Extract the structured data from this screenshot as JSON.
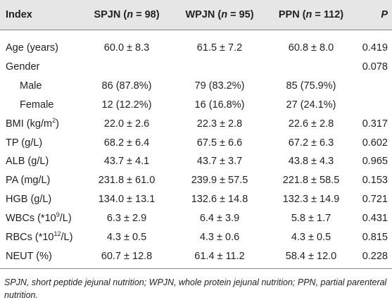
{
  "table": {
    "header": [
      "Index",
      [
        "SPJN (",
        "n",
        " = 98)"
      ],
      [
        "WPJN (",
        "n",
        " = 95)"
      ],
      [
        "PPN (",
        "n",
        " = 112)"
      ],
      [
        "",
        "P",
        ""
      ]
    ],
    "rows": [
      {
        "index": "Age (years)",
        "spjn": "60.0 ± 8.3",
        "wpjn": "61.5 ± 7.2",
        "ppn": "60.8 ± 8.0",
        "p": "0.419"
      },
      {
        "index": "Gender",
        "p": "0.078"
      },
      {
        "index": "Male",
        "spjn": "86 (87.8%)",
        "wpjn": "79 (83.2%)",
        "ppn": "85 (75.9%)"
      },
      {
        "index": "Female",
        "spjn": "12 (12.2%)",
        "wpjn": "16 (16.8%)",
        "ppn": "27 (24.1%)"
      },
      {
        "index": [
          "BMI (kg/m",
          "2",
          ")"
        ],
        "spjn": "22.0 ± 2.6",
        "wpjn": "22.3 ± 2.8",
        "ppn": "22.6 ± 2.8",
        "p": "0.317"
      },
      {
        "index": "TP (g/L)",
        "spjn": "68.2 ± 6.4",
        "wpjn": "67.5 ± 6.6",
        "ppn": "67.2 ± 6.3",
        "p": "0.602"
      },
      {
        "index": "ALB (g/L)",
        "spjn": "43.7 ± 4.1",
        "wpjn": "43.7 ± 3.7",
        "ppn": "43.8 ± 4.3",
        "p": "0.965"
      },
      {
        "index": "PA (mg/L)",
        "spjn": "231.8 ± 61.0",
        "wpjn": "239.9 ± 57.5",
        "ppn": "221.8 ± 58.5",
        "p": "0.153"
      },
      {
        "index": "HGB (g/L)",
        "spjn": "134.0 ± 13.1",
        "wpjn": "132.6 ± 14.8",
        "ppn": "132.3 ± 14.9",
        "p": "0.721"
      },
      {
        "index": [
          "WBCs (*10",
          "9",
          "/L)"
        ],
        "spjn": "6.3 ± 2.9",
        "wpjn": "6.4 ± 3.9",
        "ppn": "5.8 ± 1.7",
        "p": "0.431"
      },
      {
        "index": [
          "RBCs (*10",
          "12",
          "/L)"
        ],
        "spjn": "4.3 ± 0.5",
        "wpjn": "4.3 ± 0.6",
        "ppn": "4.3 ± 0.5",
        "p": "0.815"
      },
      {
        "index": "NEUT (%)",
        "spjn": "60.7 ± 12.8",
        "wpjn": "61.4 ± 11.2",
        "ppn": "58.4 ± 12.0",
        "p": "0.228"
      }
    ],
    "footnote": "SPJN, short peptide jejunal nutrition; WPJN, whole protein jejunal nutrition; PPN, partial parenteral nutrition."
  }
}
